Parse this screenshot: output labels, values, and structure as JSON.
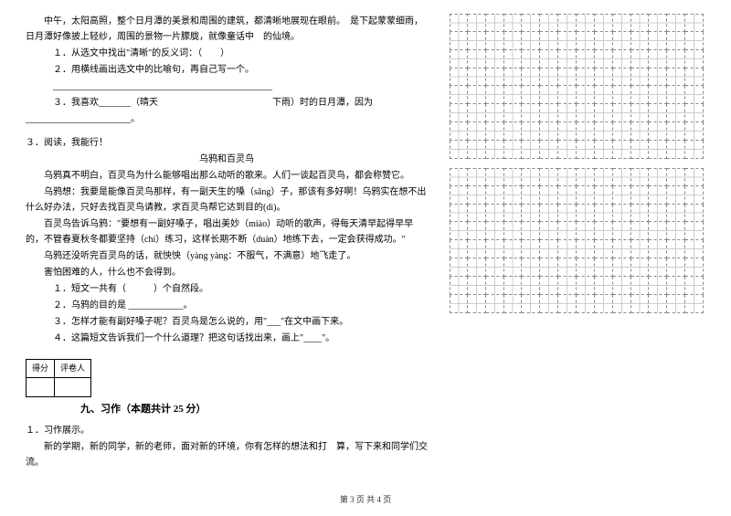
{
  "passage1": {
    "p1": "中午，太阳高照，整个日月潭的美景和周围的建筑，都清晰地展现在眼前。　是下起蒙蒙细雨，日月潭好像披上轻纱，周围的景物一片朦胧，就像童话中　的仙境。",
    "q1": "１．从选文中找出\"清晰\"的反义词：（　　）",
    "q2": "２．用横线画出选文中的比喻句，再自己写一个。",
    "q2_blank": "________________________________________________",
    "q3_a": "３．我喜欢_______（晴天",
    "q3_b": "下雨）时的日月潭，因为",
    "q3_blank": "_______________________。"
  },
  "reading2": {
    "header": "３．阅读，我能行！",
    "title": "乌鸦和百灵鸟",
    "p1": "乌鸦真不明白，百灵鸟为什么能够唱出那么动听的歌来。人们一谈起百灵鸟，都会称赞它。",
    "p2": "乌鸦想：我要是能像百灵鸟那样，有一副天生的嗓（sǎng）子，那该有多好啊！乌鸦实在想不出什么好办法，只好去找百灵鸟请教，求百灵鸟帮它达到目的(dì)。",
    "p3": "百灵鸟告诉乌鸦：\"要想有一副好嗓子，唱出美妙（miào）动听的歌声，得每天清早起得早早的，不管春夏秋冬都要坚持（chí）练习，这样长期不断（duàn）地练下去，一定会获得成功。\"",
    "p4": "乌鸦还没听完百灵鸟的话，就怏怏（yàng yàng：不服气，不满意）地飞走了。",
    "p5": "害怕困难的人，什么也不会得到。",
    "q1": "１．短文一共有（　　　）个自然段。",
    "q2": "２．乌鸦的目的是 ____________。",
    "q3": "３．怎样才能有副好嗓子呢？百灵鸟是怎么说的，用\"___\"在文中画下来。",
    "q4": "４．这篇短文告诉我们一个什么道理？把这句话找出来，画上\"____\"。"
  },
  "section9": {
    "score_h1": "得分",
    "score_h2": "评卷人",
    "title": "九、习作（本题共计 25 分）",
    "q_header": "１．习作展示。",
    "q_body": "新的学期，新的同学，新的老师，面对新的环境，你有怎样的想法和打　算，写下来和同学们交流。"
  },
  "footer": "第 3 页 共 4 页",
  "grid": {
    "cols": 14,
    "rows": 8
  }
}
